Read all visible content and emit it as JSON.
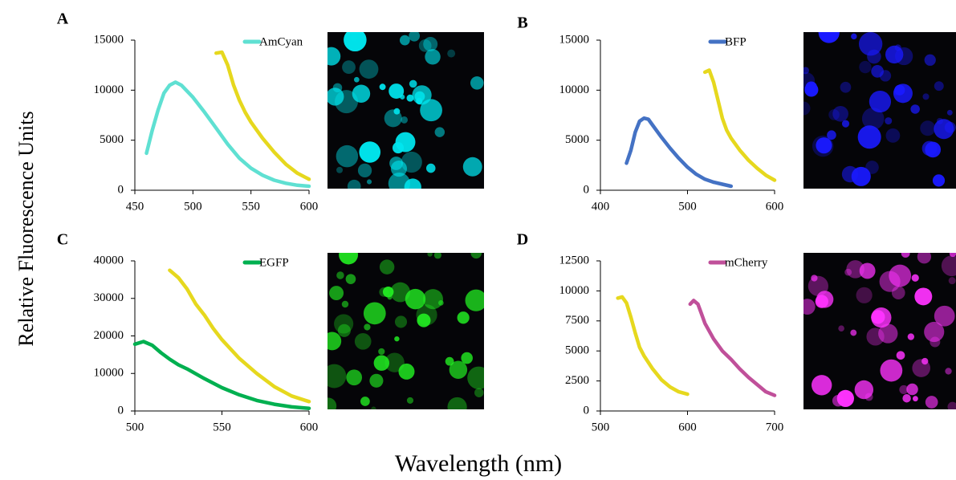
{
  "xlabel": "Wavelength (nm)",
  "ylabel": "Relative Fluorescence Units",
  "chart_data": [
    {
      "type": "line",
      "panel": "A",
      "xlim": [
        450,
        600
      ],
      "xticks": [
        450,
        500,
        550,
        600
      ],
      "ylim": [
        0,
        15000
      ],
      "yticks": [
        0,
        5000,
        10000,
        15000
      ],
      "series": [
        {
          "name": "AmCyan",
          "color": "#5fe0d2",
          "x": [
            460,
            465,
            470,
            475,
            480,
            485,
            490,
            500,
            510,
            520,
            530,
            540,
            550,
            560,
            570,
            580,
            590,
            600
          ],
          "values": [
            3700,
            6000,
            8000,
            9700,
            10500,
            10800,
            10500,
            9300,
            7800,
            6200,
            4600,
            3200,
            2200,
            1500,
            1000,
            700,
            500,
            400
          ]
        },
        {
          "color": "#e6d81e",
          "x": [
            520,
            525,
            530,
            535,
            540,
            545,
            550,
            560,
            570,
            580,
            590,
            600
          ],
          "values": [
            13700,
            13800,
            12500,
            10500,
            9000,
            7800,
            6800,
            5200,
            3800,
            2600,
            1700,
            1100
          ]
        }
      ]
    },
    {
      "type": "line",
      "panel": "B",
      "xlim": [
        400,
        600
      ],
      "xticks": [
        400,
        500,
        600
      ],
      "ylim": [
        0,
        15000
      ],
      "yticks": [
        0,
        5000,
        10000,
        15000
      ],
      "series": [
        {
          "name": "BFP",
          "color": "#4472c4",
          "x": [
            430,
            435,
            440,
            445,
            450,
            455,
            460,
            470,
            480,
            490,
            500,
            510,
            520,
            530,
            540,
            550
          ],
          "values": [
            2700,
            4000,
            5800,
            6900,
            7200,
            7100,
            6500,
            5300,
            4200,
            3200,
            2300,
            1600,
            1100,
            800,
            600,
            400
          ]
        },
        {
          "color": "#e6d81e",
          "x": [
            520,
            525,
            530,
            535,
            540,
            545,
            550,
            560,
            570,
            580,
            590,
            600
          ],
          "values": [
            11800,
            12000,
            10800,
            9000,
            7200,
            6000,
            5200,
            4000,
            3000,
            2200,
            1500,
            1000
          ]
        }
      ]
    },
    {
      "type": "line",
      "panel": "C",
      "xlim": [
        500,
        600
      ],
      "xticks": [
        500,
        550,
        600
      ],
      "ylim": [
        0,
        40000
      ],
      "yticks": [
        0,
        10000,
        20000,
        30000,
        40000
      ],
      "series": [
        {
          "name": "EGFP",
          "color": "#00b050",
          "x": [
            500,
            505,
            510,
            515,
            520,
            525,
            530,
            540,
            550,
            560,
            570,
            580,
            590,
            600
          ],
          "values": [
            17800,
            18500,
            17500,
            15500,
            13800,
            12300,
            11200,
            8600,
            6200,
            4300,
            2800,
            1800,
            1100,
            700
          ]
        },
        {
          "color": "#e6d81e",
          "x": [
            520,
            525,
            530,
            535,
            540,
            545,
            550,
            560,
            570,
            580,
            590,
            600
          ],
          "values": [
            37500,
            35500,
            32500,
            28500,
            25500,
            22000,
            19000,
            14000,
            10000,
            6500,
            4000,
            2500
          ]
        }
      ]
    },
    {
      "type": "line",
      "panel": "D",
      "xlim": [
        500,
        700
      ],
      "xticks": [
        500,
        600,
        700
      ],
      "ylim": [
        0,
        12500
      ],
      "yticks": [
        0,
        2500,
        5000,
        7500,
        10000,
        12500
      ],
      "series": [
        {
          "name": "mCherry",
          "color": "#c0509a",
          "x": [
            603,
            607,
            612,
            615,
            620,
            630,
            640,
            650,
            660,
            670,
            680,
            690,
            700
          ],
          "values": [
            8900,
            9200,
            8900,
            8300,
            7300,
            6000,
            5000,
            4300,
            3500,
            2800,
            2200,
            1600,
            1300
          ]
        },
        {
          "color": "#e6d81e",
          "x": [
            520,
            525,
            530,
            535,
            540,
            545,
            550,
            560,
            570,
            580,
            590,
            600
          ],
          "values": [
            9400,
            9500,
            9000,
            7800,
            6500,
            5300,
            4600,
            3500,
            2600,
            2000,
            1600,
            1400
          ]
        }
      ]
    }
  ]
}
